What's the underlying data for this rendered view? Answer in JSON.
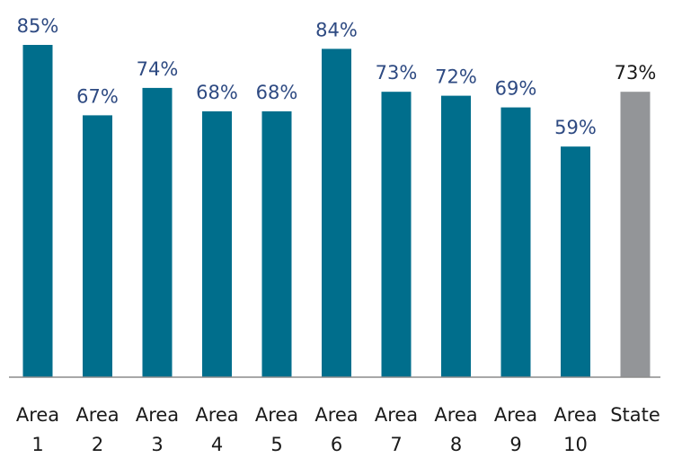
{
  "chart_data": {
    "type": "bar",
    "categories": [
      [
        "Area",
        "1"
      ],
      [
        "Area",
        "2"
      ],
      [
        "Area",
        "3"
      ],
      [
        "Area",
        "4"
      ],
      [
        "Area",
        "5"
      ],
      [
        "Area",
        "6"
      ],
      [
        "Area",
        "7"
      ],
      [
        "Area",
        "8"
      ],
      [
        "Area",
        "9"
      ],
      [
        "Area",
        "10"
      ],
      [
        "State"
      ]
    ],
    "values": [
      85,
      67,
      74,
      68,
      68,
      84,
      73,
      72,
      69,
      59,
      73
    ],
    "data_labels": [
      "85%",
      "67%",
      "74%",
      "68%",
      "68%",
      "84%",
      "73%",
      "72%",
      "69%",
      "59%",
      "73%"
    ],
    "title": "",
    "xlabel": "",
    "ylabel": "",
    "ylim": [
      0,
      85
    ],
    "grid": false,
    "legend": "none",
    "colors": {
      "area_bar": "#006E8C",
      "state_bar": "#939598",
      "area_label": "#2E4A82",
      "state_label": "#1A1A1A",
      "axis": "#8C8C8C",
      "category_label": "#1A1A1A"
    }
  }
}
